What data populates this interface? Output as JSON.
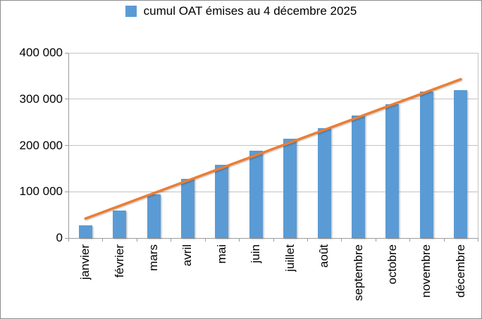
{
  "legend": {
    "label": "cumul OAT émises au 4 décembre 2025"
  },
  "chart_data": {
    "type": "bar",
    "title": "cumul OAT émises au 4 décembre 2025",
    "categories": [
      "janvier",
      "février",
      "mars",
      "avril",
      "mai",
      "juin",
      "juillet",
      "août",
      "septembre",
      "octobre",
      "novembre",
      "décembre"
    ],
    "series": [
      {
        "name": "cumul OAT émises au 4 décembre 2025",
        "type": "bar",
        "color": "#5B9BD5",
        "values": [
          28000,
          60000,
          94000,
          128000,
          158000,
          188000,
          215000,
          237000,
          265000,
          289000,
          316000,
          320000
        ]
      },
      {
        "name": "trend-line",
        "type": "line",
        "color": "#ED7D31",
        "values": [
          42000,
          69400,
          96700,
          124100,
          151500,
          178800,
          206200,
          233500,
          260900,
          288300,
          315600,
          343000
        ]
      }
    ],
    "ylim": [
      0,
      400000
    ],
    "ytick_step": 100000,
    "ytick_labels": [
      "0",
      "100 000",
      "200 000",
      "300 000",
      "400 000"
    ],
    "grid": true,
    "legend_position": "top-center",
    "x_label_rotation_deg": 90
  },
  "colors": {
    "bar": "#5B9BD5",
    "line": "#ED7D31",
    "gridline": "#c3c3c3",
    "axis": "#9c9c9c",
    "text": "#000000",
    "frame_border": "#8c8c8c",
    "background": "#ffffff"
  }
}
